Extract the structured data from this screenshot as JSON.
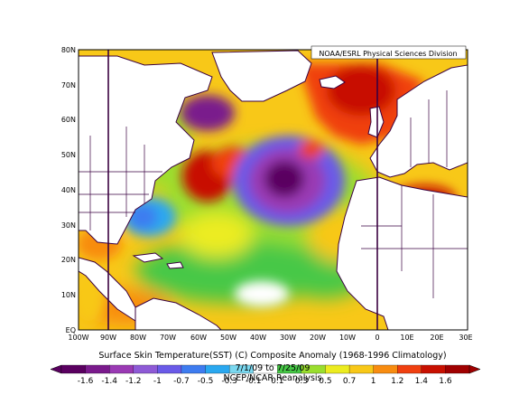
{
  "map": {
    "credit": "NOAA/ESRL Physical Sciences Division",
    "lat_labels": [
      "80N",
      "70N",
      "60N",
      "50N",
      "40N",
      "30N",
      "20N",
      "10N",
      "EQ"
    ],
    "lon_labels": [
      "100W",
      "90W",
      "80W",
      "70W",
      "60W",
      "50W",
      "40W",
      "30W",
      "20W",
      "10W",
      "0",
      "10E",
      "20E",
      "30E"
    ],
    "extent": {
      "lon": [
        -100,
        30
      ],
      "lat": [
        0,
        80
      ]
    }
  },
  "caption": {
    "line1": "Surface Skin Temperature(SST) (C) Composite Anomaly (1968-1996 Climatology)",
    "line2": "7/1/09 to 7/25/09",
    "line3": "NCEP/NCAR Reanalysis"
  },
  "colorbar": {
    "labels": [
      "-1.6",
      "-1.4",
      "-1.2",
      "-1",
      "-0.7",
      "-0.5",
      "-0.3",
      "-0.1",
      "0.1",
      "0.3",
      "0.5",
      "0.7",
      "1",
      "1.2",
      "1.4",
      "1.6"
    ],
    "colors": [
      "#5a0060",
      "#7a1a8c",
      "#9a3ab4",
      "#8e5ad6",
      "#6a5ae8",
      "#3e7cf0",
      "#2aa8f0",
      "#7ad8f0",
      "#ffffff",
      "#46c846",
      "#9ade2e",
      "#ecec20",
      "#f8c818",
      "#f88c10",
      "#f04010",
      "#c81000",
      "#a00000"
    ]
  },
  "anomaly_blobs": [
    {
      "name": "cold-core-central-atlantic",
      "lon": -31,
      "lat": 41,
      "value": -1.6
    },
    {
      "name": "cold-ring-central-atlantic",
      "lon": -33,
      "lat": 42,
      "value": -0.7
    },
    {
      "name": "cold-labrador-sea",
      "lon": -58,
      "lat": 61,
      "value": -1.2
    },
    {
      "name": "warm-north-atlantic",
      "lon": -15,
      "lat": 64,
      "value": 1.6
    },
    {
      "name": "warm-us-east-coast",
      "lon": -62,
      "lat": 43,
      "value": 1.6
    },
    {
      "name": "warm-newfoundland",
      "lon": -55,
      "lat": 49,
      "value": 1.4
    },
    {
      "name": "cold-bahamas",
      "lon": -74,
      "lat": 28,
      "value": -0.7
    },
    {
      "name": "warm-gulf-of-mexico",
      "lon": -92,
      "lat": 25,
      "value": 1.2
    },
    {
      "name": "warm-tropical-atlantic",
      "lon": -45,
      "lat": 18,
      "value": 0.7
    },
    {
      "name": "warm-mediterranean",
      "lon": 17,
      "lat": 37,
      "value": 1.6
    }
  ]
}
